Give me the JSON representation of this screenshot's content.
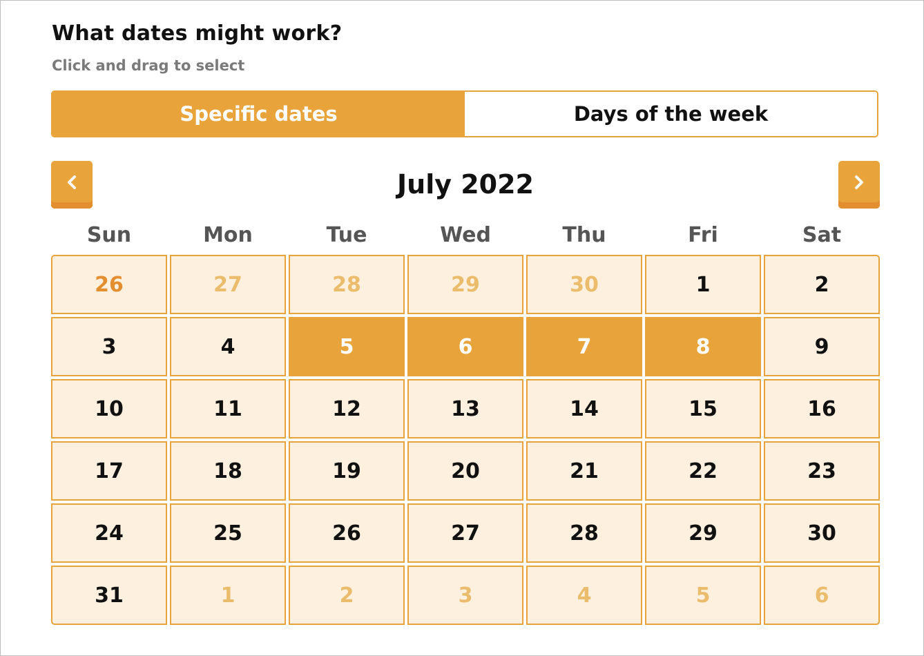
{
  "header": {
    "title": "What dates might work?",
    "subtitle": "Click and drag to select"
  },
  "toggle": {
    "options": [
      {
        "label": "Specific dates",
        "active": true
      },
      {
        "label": "Days of the week",
        "active": false
      }
    ]
  },
  "calendar": {
    "month_label": "July 2022",
    "prev_icon": "chevron-left-icon",
    "next_icon": "chevron-right-icon",
    "weekdays": [
      "Sun",
      "Mon",
      "Tue",
      "Wed",
      "Thu",
      "Fri",
      "Sat"
    ],
    "weeks": [
      [
        {
          "label": "26",
          "outside": true,
          "today": true
        },
        {
          "label": "27",
          "outside": true
        },
        {
          "label": "28",
          "outside": true
        },
        {
          "label": "29",
          "outside": true
        },
        {
          "label": "30",
          "outside": true
        },
        {
          "label": "1"
        },
        {
          "label": "2"
        }
      ],
      [
        {
          "label": "3"
        },
        {
          "label": "4"
        },
        {
          "label": "5",
          "selected": true
        },
        {
          "label": "6",
          "selected": true
        },
        {
          "label": "7",
          "selected": true
        },
        {
          "label": "8",
          "selected": true
        },
        {
          "label": "9"
        }
      ],
      [
        {
          "label": "10"
        },
        {
          "label": "11"
        },
        {
          "label": "12"
        },
        {
          "label": "13"
        },
        {
          "label": "14"
        },
        {
          "label": "15"
        },
        {
          "label": "16"
        }
      ],
      [
        {
          "label": "17"
        },
        {
          "label": "18"
        },
        {
          "label": "19"
        },
        {
          "label": "20"
        },
        {
          "label": "21"
        },
        {
          "label": "22"
        },
        {
          "label": "23"
        }
      ],
      [
        {
          "label": "24"
        },
        {
          "label": "25"
        },
        {
          "label": "26"
        },
        {
          "label": "27"
        },
        {
          "label": "28"
        },
        {
          "label": "29"
        },
        {
          "label": "30"
        }
      ],
      [
        {
          "label": "31"
        },
        {
          "label": "1",
          "outside": true
        },
        {
          "label": "2",
          "outside": true
        },
        {
          "label": "3",
          "outside": true
        },
        {
          "label": "4",
          "outside": true
        },
        {
          "label": "5",
          "outside": true
        },
        {
          "label": "6",
          "outside": true
        }
      ]
    ]
  },
  "colors": {
    "accent": "#e8a33b",
    "accent_dark": "#e38f2f",
    "cell_bg": "#fdf0de",
    "outside_text": "#ebbc6c",
    "today_text": "#e38f2f"
  }
}
